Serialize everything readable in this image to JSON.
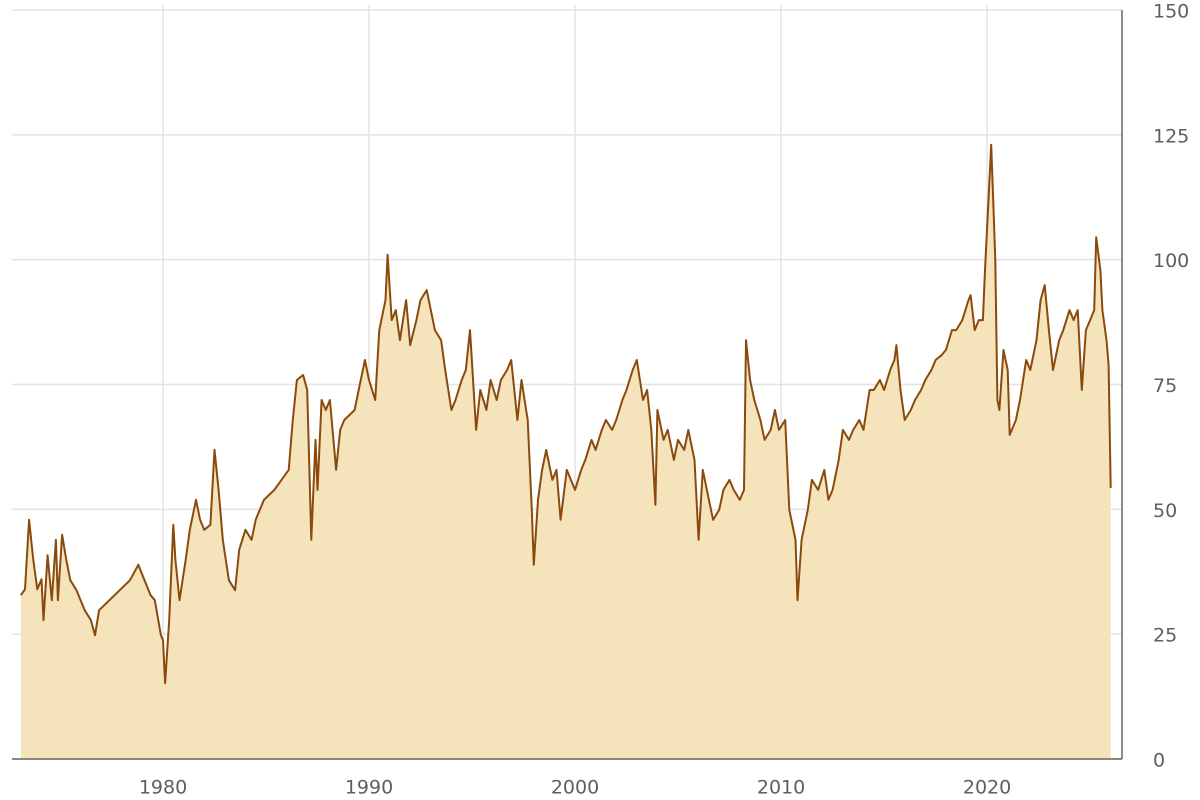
{
  "chart_data": {
    "type": "area",
    "color": "#8b4a0c",
    "fill": "#f5e4bb",
    "grid": true,
    "xlim": [
      1972.67,
      2026.55
    ],
    "xticks": [
      1980,
      1990,
      2000,
      2010,
      2020
    ],
    "ylim": [
      0,
      150
    ],
    "yticks": [
      0,
      25,
      50,
      75,
      100,
      125,
      150
    ],
    "x": [
      1973.1,
      1973.3,
      1973.5,
      1973.7,
      1973.9,
      1974.1,
      1974.2,
      1974.4,
      1974.6,
      1974.8,
      1974.9,
      1975.1,
      1975.3,
      1975.5,
      1975.8,
      1976.0,
      1976.2,
      1976.5,
      1976.7,
      1976.9,
      1977.4,
      1977.9,
      1978.4,
      1978.8,
      1979.1,
      1979.4,
      1979.6,
      1979.9,
      1980.0,
      1980.1,
      1980.3,
      1980.5,
      1980.6,
      1980.8,
      1981.1,
      1981.3,
      1981.6,
      1981.8,
      1982.0,
      1982.3,
      1982.5,
      1982.7,
      1982.9,
      1983.2,
      1983.5,
      1983.7,
      1984.0,
      1984.3,
      1984.5,
      1984.7,
      1984.9,
      1985.4,
      1986.1,
      1986.3,
      1986.5,
      1986.8,
      1987.0,
      1987.2,
      1987.4,
      1987.5,
      1987.7,
      1987.9,
      1988.1,
      1988.4,
      1988.6,
      1988.8,
      1989.3,
      1989.5,
      1989.8,
      1990.0,
      1990.3,
      1990.5,
      1990.8,
      1990.9,
      1991.1,
      1991.3,
      1991.5,
      1991.8,
      1992.0,
      1992.3,
      1992.5,
      1992.8,
      1993.0,
      1993.2,
      1993.5,
      1993.7,
      1994.0,
      1994.2,
      1994.5,
      1994.7,
      1994.9,
      1995.2,
      1995.4,
      1995.7,
      1995.9,
      1996.2,
      1996.4,
      1996.7,
      1996.9,
      1997.2,
      1997.4,
      1997.7,
      1997.9,
      1998.0,
      1998.2,
      1998.4,
      1998.6,
      1998.9,
      1999.1,
      1999.3,
      1999.6,
      1999.8,
      2000.0,
      2000.3,
      2000.5,
      2000.8,
      2001.0,
      2001.3,
      2001.5,
      2001.8,
      2002.0,
      2002.3,
      2002.5,
      2002.8,
      2003.0,
      2003.3,
      2003.5,
      2003.7,
      2003.9,
      2004.0,
      2004.3,
      2004.5,
      2004.8,
      2005.0,
      2005.3,
      2005.5,
      2005.8,
      2006.0,
      2006.2,
      2006.5,
      2006.7,
      2007.0,
      2007.2,
      2007.5,
      2007.7,
      2008.0,
      2008.2,
      2008.3,
      2008.5,
      2008.7,
      2009.0,
      2009.2,
      2009.5,
      2009.7,
      2009.9,
      2010.2,
      2010.4,
      2010.7,
      2010.8,
      2011.0,
      2011.3,
      2011.5,
      2011.8,
      2012.1,
      2012.3,
      2012.5,
      2012.8,
      2013.0,
      2013.3,
      2013.5,
      2013.8,
      2014.0,
      2014.3,
      2014.5,
      2014.8,
      2015.0,
      2015.3,
      2015.5,
      2015.6,
      2015.8,
      2016.0,
      2016.3,
      2016.5,
      2016.8,
      2017.0,
      2017.3,
      2017.5,
      2017.8,
      2018.0,
      2018.3,
      2018.5,
      2018.8,
      2019.1,
      2019.2,
      2019.4,
      2019.6,
      2019.8,
      2019.9,
      2020.2,
      2020.3,
      2020.4,
      2020.5,
      2020.6,
      2020.8,
      2021.0,
      2021.1,
      2021.4,
      2021.6,
      2021.9,
      2022.1,
      2022.4,
      2022.6,
      2022.8,
      2023.0,
      2023.2,
      2023.5,
      2023.7,
      2024.0,
      2024.2,
      2024.4,
      2024.6,
      2024.8,
      2025.0,
      2025.2,
      2025.3,
      2025.5,
      2025.6,
      2025.8,
      2025.9,
      2026.0
    ],
    "values": [
      32.8,
      34,
      47.9,
      40,
      34,
      36,
      27.8,
      40.8,
      31.8,
      43.9,
      31.8,
      44.9,
      40,
      35.8,
      33.8,
      31.8,
      29.8,
      27.8,
      24.8,
      29.8,
      31.8,
      33.8,
      35.8,
      38.9,
      35.8,
      32.8,
      31.8,
      24.8,
      23.8,
      15.2,
      27.8,
      46.9,
      39.9,
      31.8,
      39.9,
      45.9,
      51.9,
      47.9,
      45.9,
      46.9,
      61.9,
      53.9,
      43.9,
      35.8,
      33.8,
      41.9,
      45.9,
      43.9,
      47.9,
      49.9,
      51.9,
      53.9,
      57.9,
      67.9,
      75.9,
      76.9,
      73.9,
      43.9,
      63.9,
      53.9,
      71.9,
      69.9,
      71.9,
      57.9,
      65.9,
      67.9,
      69.9,
      73.9,
      79.9,
      75.9,
      71.9,
      85.9,
      91.9,
      101,
      87.9,
      89.9,
      83.9,
      91.9,
      82.9,
      87.9,
      91.9,
      93.9,
      89.9,
      85.9,
      83.9,
      77.9,
      69.9,
      71.9,
      75.9,
      77.9,
      85.9,
      65.9,
      73.9,
      69.9,
      75.9,
      71.9,
      75.9,
      77.9,
      79.9,
      67.9,
      75.9,
      67.9,
      49.9,
      38.9,
      51.9,
      57.9,
      61.9,
      55.9,
      57.9,
      47.9,
      57.9,
      55.9,
      53.9,
      57.9,
      59.9,
      63.9,
      61.9,
      65.9,
      67.9,
      65.9,
      67.9,
      71.9,
      73.9,
      77.9,
      79.9,
      71.9,
      73.9,
      65.9,
      50.9,
      69.9,
      63.9,
      65.9,
      59.9,
      63.9,
      61.9,
      65.9,
      59.9,
      43.9,
      57.9,
      51.9,
      47.9,
      49.9,
      53.9,
      55.9,
      53.9,
      51.9,
      53.9,
      83.9,
      75.9,
      71.9,
      67.9,
      63.9,
      65.9,
      69.9,
      65.9,
      67.9,
      49.9,
      43.9,
      31.8,
      43.9,
      49.9,
      55.9,
      53.9,
      57.9,
      51.9,
      53.9,
      59.9,
      65.9,
      63.9,
      65.9,
      67.9,
      65.9,
      73.9,
      73.9,
      75.9,
      73.9,
      77.9,
      79.9,
      82.9,
      73.9,
      67.9,
      69.9,
      71.9,
      73.9,
      75.9,
      77.9,
      79.9,
      80.9,
      81.9,
      85.9,
      85.9,
      87.9,
      91.9,
      92.9,
      85.9,
      87.9,
      87.9,
      97.9,
      123,
      111.9,
      99.9,
      71.9,
      69.9,
      81.9,
      77.9,
      64.9,
      67.9,
      71.9,
      79.9,
      77.9,
      83.9,
      91.9,
      94.9,
      85.9,
      77.9,
      83.9,
      85.9,
      89.9,
      87.9,
      89.9,
      73.9,
      85.9,
      87.9,
      89.9,
      104.5,
      97.9,
      89.9,
      83.9,
      78.9,
      54.3
    ]
  }
}
